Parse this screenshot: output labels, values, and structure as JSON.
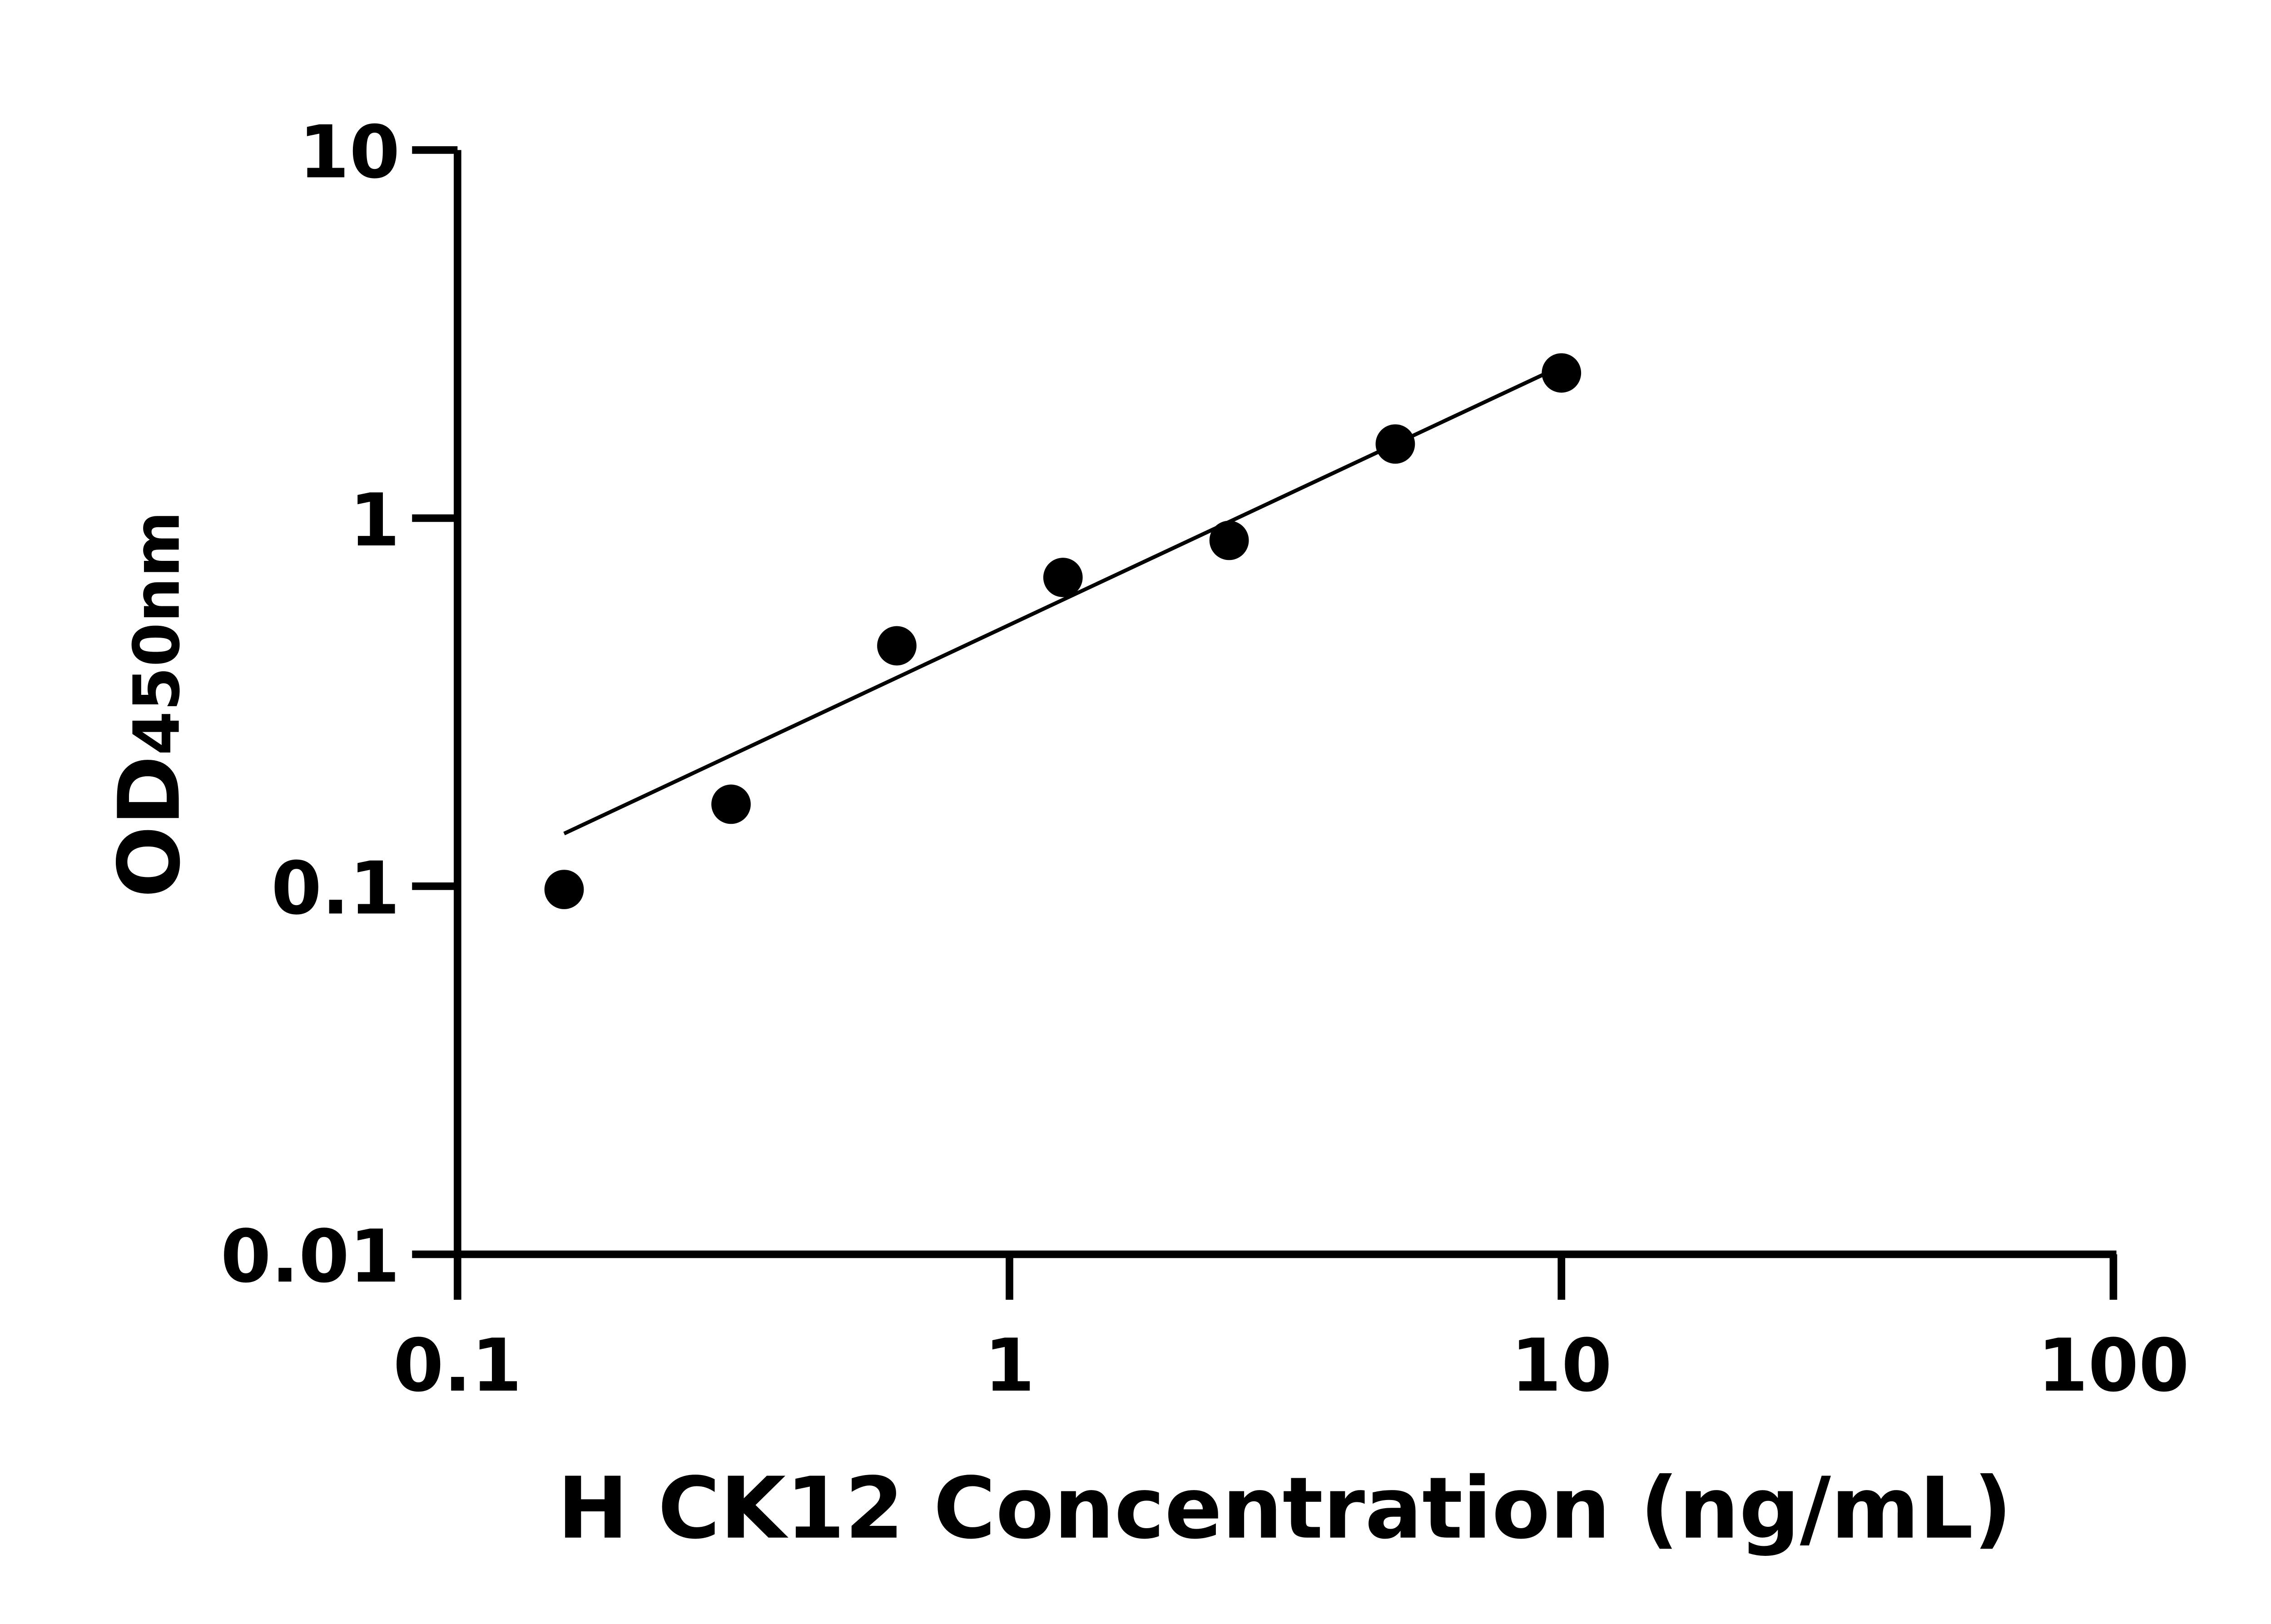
{
  "chart_data": {
    "type": "scatter",
    "title": "",
    "xlabel": "H CK12 Concentration (ng/mL)",
    "ylabel": {
      "main": "OD",
      "sub": "450nm"
    },
    "xscale": "log",
    "yscale": "log",
    "xlim": [
      0.1,
      100
    ],
    "ylim": [
      0.01,
      10
    ],
    "xticks": [
      {
        "v": 0.1,
        "label": "0.1"
      },
      {
        "v": 1,
        "label": "1"
      },
      {
        "v": 10,
        "label": "10"
      },
      {
        "v": 100,
        "label": "100"
      }
    ],
    "yticks": [
      {
        "v": 0.01,
        "label": "0.01"
      },
      {
        "v": 0.1,
        "label": "0.1"
      },
      {
        "v": 1,
        "label": "1"
      },
      {
        "v": 10,
        "label": "10"
      }
    ],
    "grid": false,
    "points": [
      {
        "x": 0.156,
        "y": 0.098
      },
      {
        "x": 0.313,
        "y": 0.167
      },
      {
        "x": 0.625,
        "y": 0.45
      },
      {
        "x": 1.25,
        "y": 0.69
      },
      {
        "x": 2.5,
        "y": 0.87
      },
      {
        "x": 5,
        "y": 1.59
      },
      {
        "x": 10,
        "y": 2.48
      }
    ],
    "fit_line": {
      "x": [
        0.156,
        9.3
      ],
      "y": [
        0.139,
        2.46
      ]
    },
    "colors": {
      "points": "#000000",
      "line": "#000000",
      "axes": "#000000"
    }
  }
}
